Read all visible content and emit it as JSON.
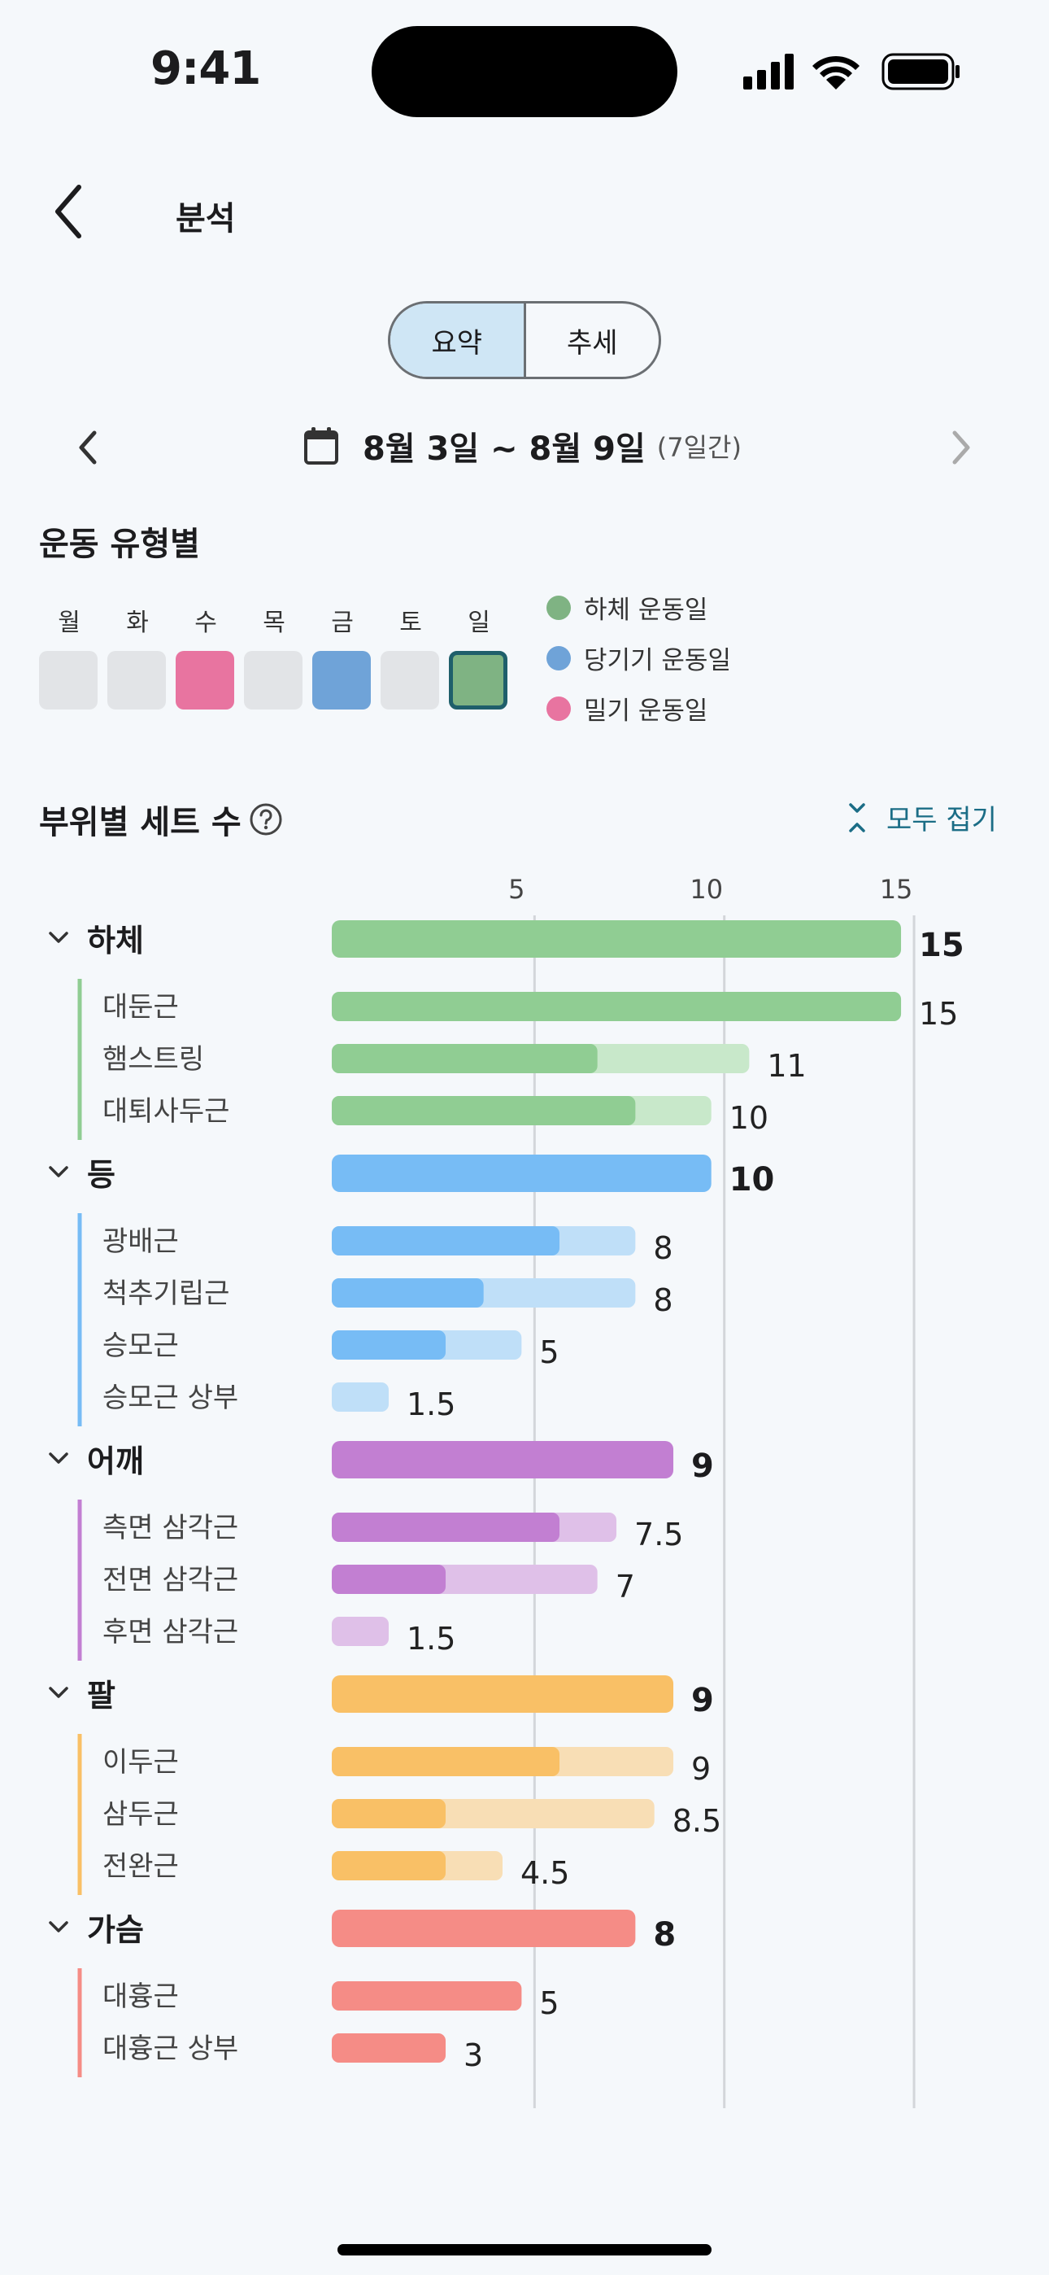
{
  "status_bar": {
    "time": "9:41"
  },
  "header": {
    "title": "분석"
  },
  "segmented": {
    "options": [
      "요약",
      "추세"
    ],
    "selected": "요약"
  },
  "date_nav": {
    "range": "8월 3일 ~ 8월 9일",
    "count": "(7일간)"
  },
  "workout_type": {
    "title": "운동 유형별",
    "days": [
      {
        "label": "월",
        "type": "none"
      },
      {
        "label": "화",
        "type": "none"
      },
      {
        "label": "수",
        "type": "push"
      },
      {
        "label": "목",
        "type": "none"
      },
      {
        "label": "금",
        "type": "pull"
      },
      {
        "label": "토",
        "type": "none"
      },
      {
        "label": "일",
        "type": "legs",
        "selected": true
      }
    ],
    "legend": [
      {
        "label": "하체 운동일",
        "color": "#7fb383"
      },
      {
        "label": "당기기 운동일",
        "color": "#6fa3d8"
      },
      {
        "label": "밀기 운동일",
        "color": "#e874a0"
      }
    ],
    "colors": {
      "none": "#e2e4e7",
      "legs": "#7fb383",
      "pull": "#6fa3d8",
      "push": "#e874a0"
    }
  },
  "sets_by_part": {
    "title": "부위별 세트 수",
    "collapse_label": "모두 접기"
  },
  "chart_data": {
    "type": "bar",
    "orientation": "horizontal",
    "x_ticks": [
      5,
      10,
      15
    ],
    "xlim": [
      0,
      15
    ],
    "groups": [
      {
        "name": "하체",
        "total": 15,
        "color": "#90cd93",
        "light": "#c8e8ca",
        "items": [
          {
            "name": "대둔근",
            "value": 15,
            "direct": 15
          },
          {
            "name": "햄스트링",
            "value": 11,
            "direct": 7
          },
          {
            "name": "대퇴사두근",
            "value": 10,
            "direct": 8
          }
        ]
      },
      {
        "name": "등",
        "total": 10,
        "color": "#77bcf5",
        "light": "#bfdff8",
        "items": [
          {
            "name": "광배근",
            "value": 8,
            "direct": 6
          },
          {
            "name": "척추기립근",
            "value": 8,
            "direct": 4
          },
          {
            "name": "승모근",
            "value": 5,
            "direct": 3
          },
          {
            "name": "승모근 상부",
            "value": 1.5,
            "direct": 0
          }
        ]
      },
      {
        "name": "어깨",
        "total": 9,
        "color": "#c27fd2",
        "light": "#dfc0e8",
        "items": [
          {
            "name": "측면 삼각근",
            "value": 7.5,
            "direct": 6
          },
          {
            "name": "전면 삼각근",
            "value": 7,
            "direct": 3
          },
          {
            "name": "후면 삼각근",
            "value": 1.5,
            "direct": 0
          }
        ]
      },
      {
        "name": "팔",
        "total": 9,
        "color": "#f9c066",
        "light": "#f8deb5",
        "items": [
          {
            "name": "이두근",
            "value": 9,
            "direct": 6
          },
          {
            "name": "삼두근",
            "value": 8.5,
            "direct": 3
          },
          {
            "name": "전완근",
            "value": 4.5,
            "direct": 3
          }
        ]
      },
      {
        "name": "가슴",
        "total": 8,
        "color": "#f58c86",
        "light": "#f9c8c4",
        "items": [
          {
            "name": "대흉근",
            "value": 5,
            "direct": 5
          },
          {
            "name": "대흉근 상부",
            "value": 3,
            "direct": 3
          }
        ]
      }
    ]
  }
}
